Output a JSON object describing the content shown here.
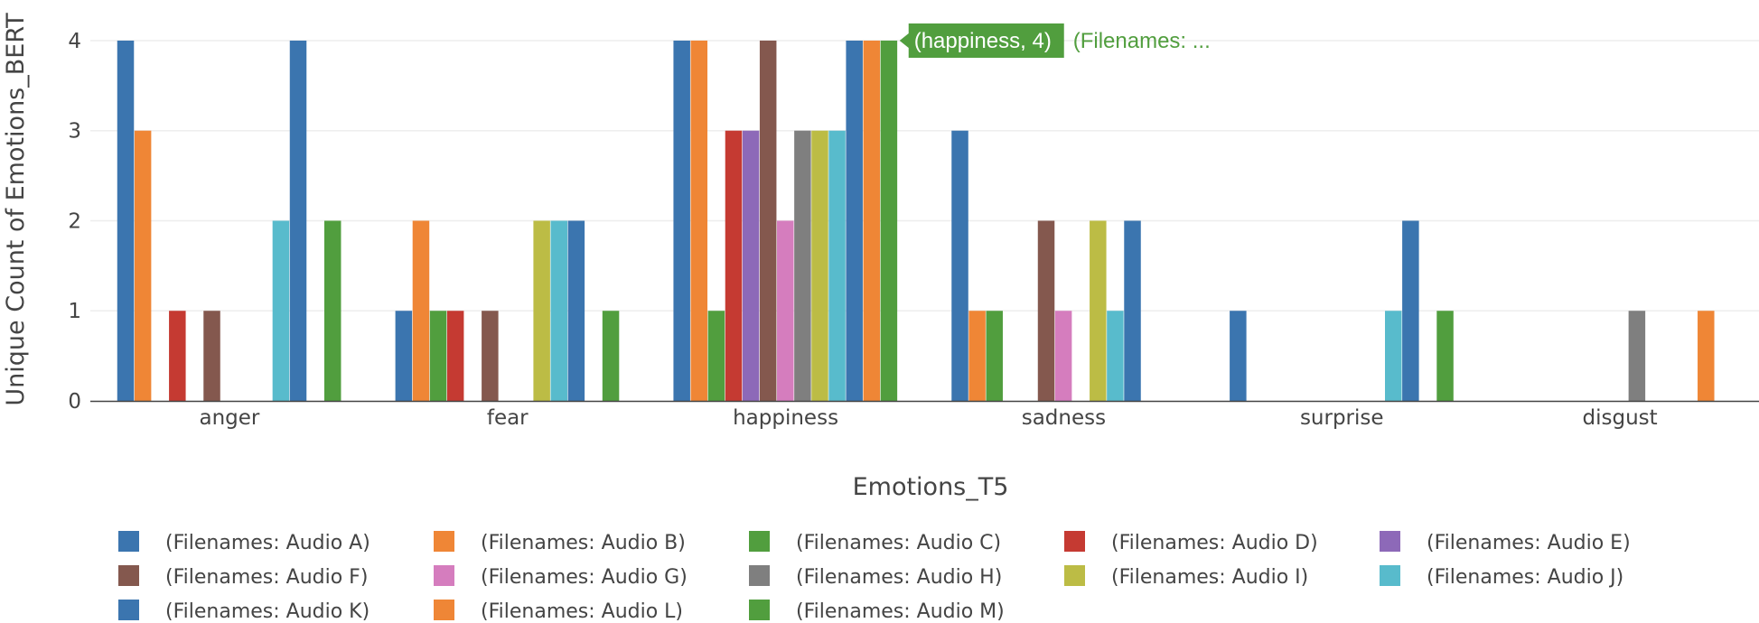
{
  "chart_data": {
    "type": "bar",
    "xlabel": "Emotions_T5",
    "ylabel": "Unique Count of Emotions_BERT",
    "ylim": [
      0,
      4.25
    ],
    "yticks": [
      0,
      1,
      2,
      3,
      4
    ],
    "grid": true,
    "legend_position": "bottom",
    "categories": [
      "anger",
      "fear",
      "happiness",
      "sadness",
      "surprise",
      "disgust"
    ],
    "series": [
      {
        "name": "(Filenames: Audio A)",
        "color": "#3b75af",
        "values": [
          4,
          1,
          4,
          3,
          1,
          null
        ]
      },
      {
        "name": "(Filenames: Audio B)",
        "color": "#ef8636",
        "values": [
          3,
          2,
          4,
          1,
          null,
          null
        ]
      },
      {
        "name": "(Filenames: Audio C)",
        "color": "#519e3e",
        "values": [
          null,
          1,
          1,
          1,
          null,
          null
        ]
      },
      {
        "name": "(Filenames: Audio D)",
        "color": "#c53a32",
        "values": [
          1,
          1,
          3,
          null,
          null,
          null
        ]
      },
      {
        "name": "(Filenames: Audio E)",
        "color": "#8d69b8",
        "values": [
          null,
          null,
          3,
          null,
          null,
          null
        ]
      },
      {
        "name": "(Filenames: Audio F)",
        "color": "#84584e",
        "values": [
          1,
          1,
          4,
          2,
          null,
          null
        ]
      },
      {
        "name": "(Filenames: Audio G)",
        "color": "#d57dbe",
        "values": [
          null,
          null,
          2,
          1,
          null,
          null
        ]
      },
      {
        "name": "(Filenames: Audio H)",
        "color": "#7f7f7f",
        "values": [
          null,
          null,
          3,
          null,
          null,
          1
        ]
      },
      {
        "name": "(Filenames: Audio I)",
        "color": "#bcbc45",
        "values": [
          null,
          2,
          3,
          2,
          null,
          null
        ]
      },
      {
        "name": "(Filenames: Audio J)",
        "color": "#58bbcc",
        "values": [
          2,
          2,
          3,
          1,
          1,
          null
        ]
      },
      {
        "name": "(Filenames: Audio K)",
        "color": "#3b75af",
        "values": [
          4,
          2,
          4,
          2,
          2,
          null
        ]
      },
      {
        "name": "(Filenames: Audio L)",
        "color": "#ef8636",
        "values": [
          null,
          null,
          4,
          null,
          null,
          1
        ]
      },
      {
        "name": "(Filenames: Audio M)",
        "color": "#519e3e",
        "values": [
          2,
          1,
          4,
          null,
          1,
          null
        ]
      }
    ],
    "tooltip": {
      "point_label": "(happiness, 4)",
      "series_label": "(Filenames: ...",
      "color": "#519e3e",
      "category": "happiness",
      "series_index": 12,
      "value": 4
    }
  }
}
